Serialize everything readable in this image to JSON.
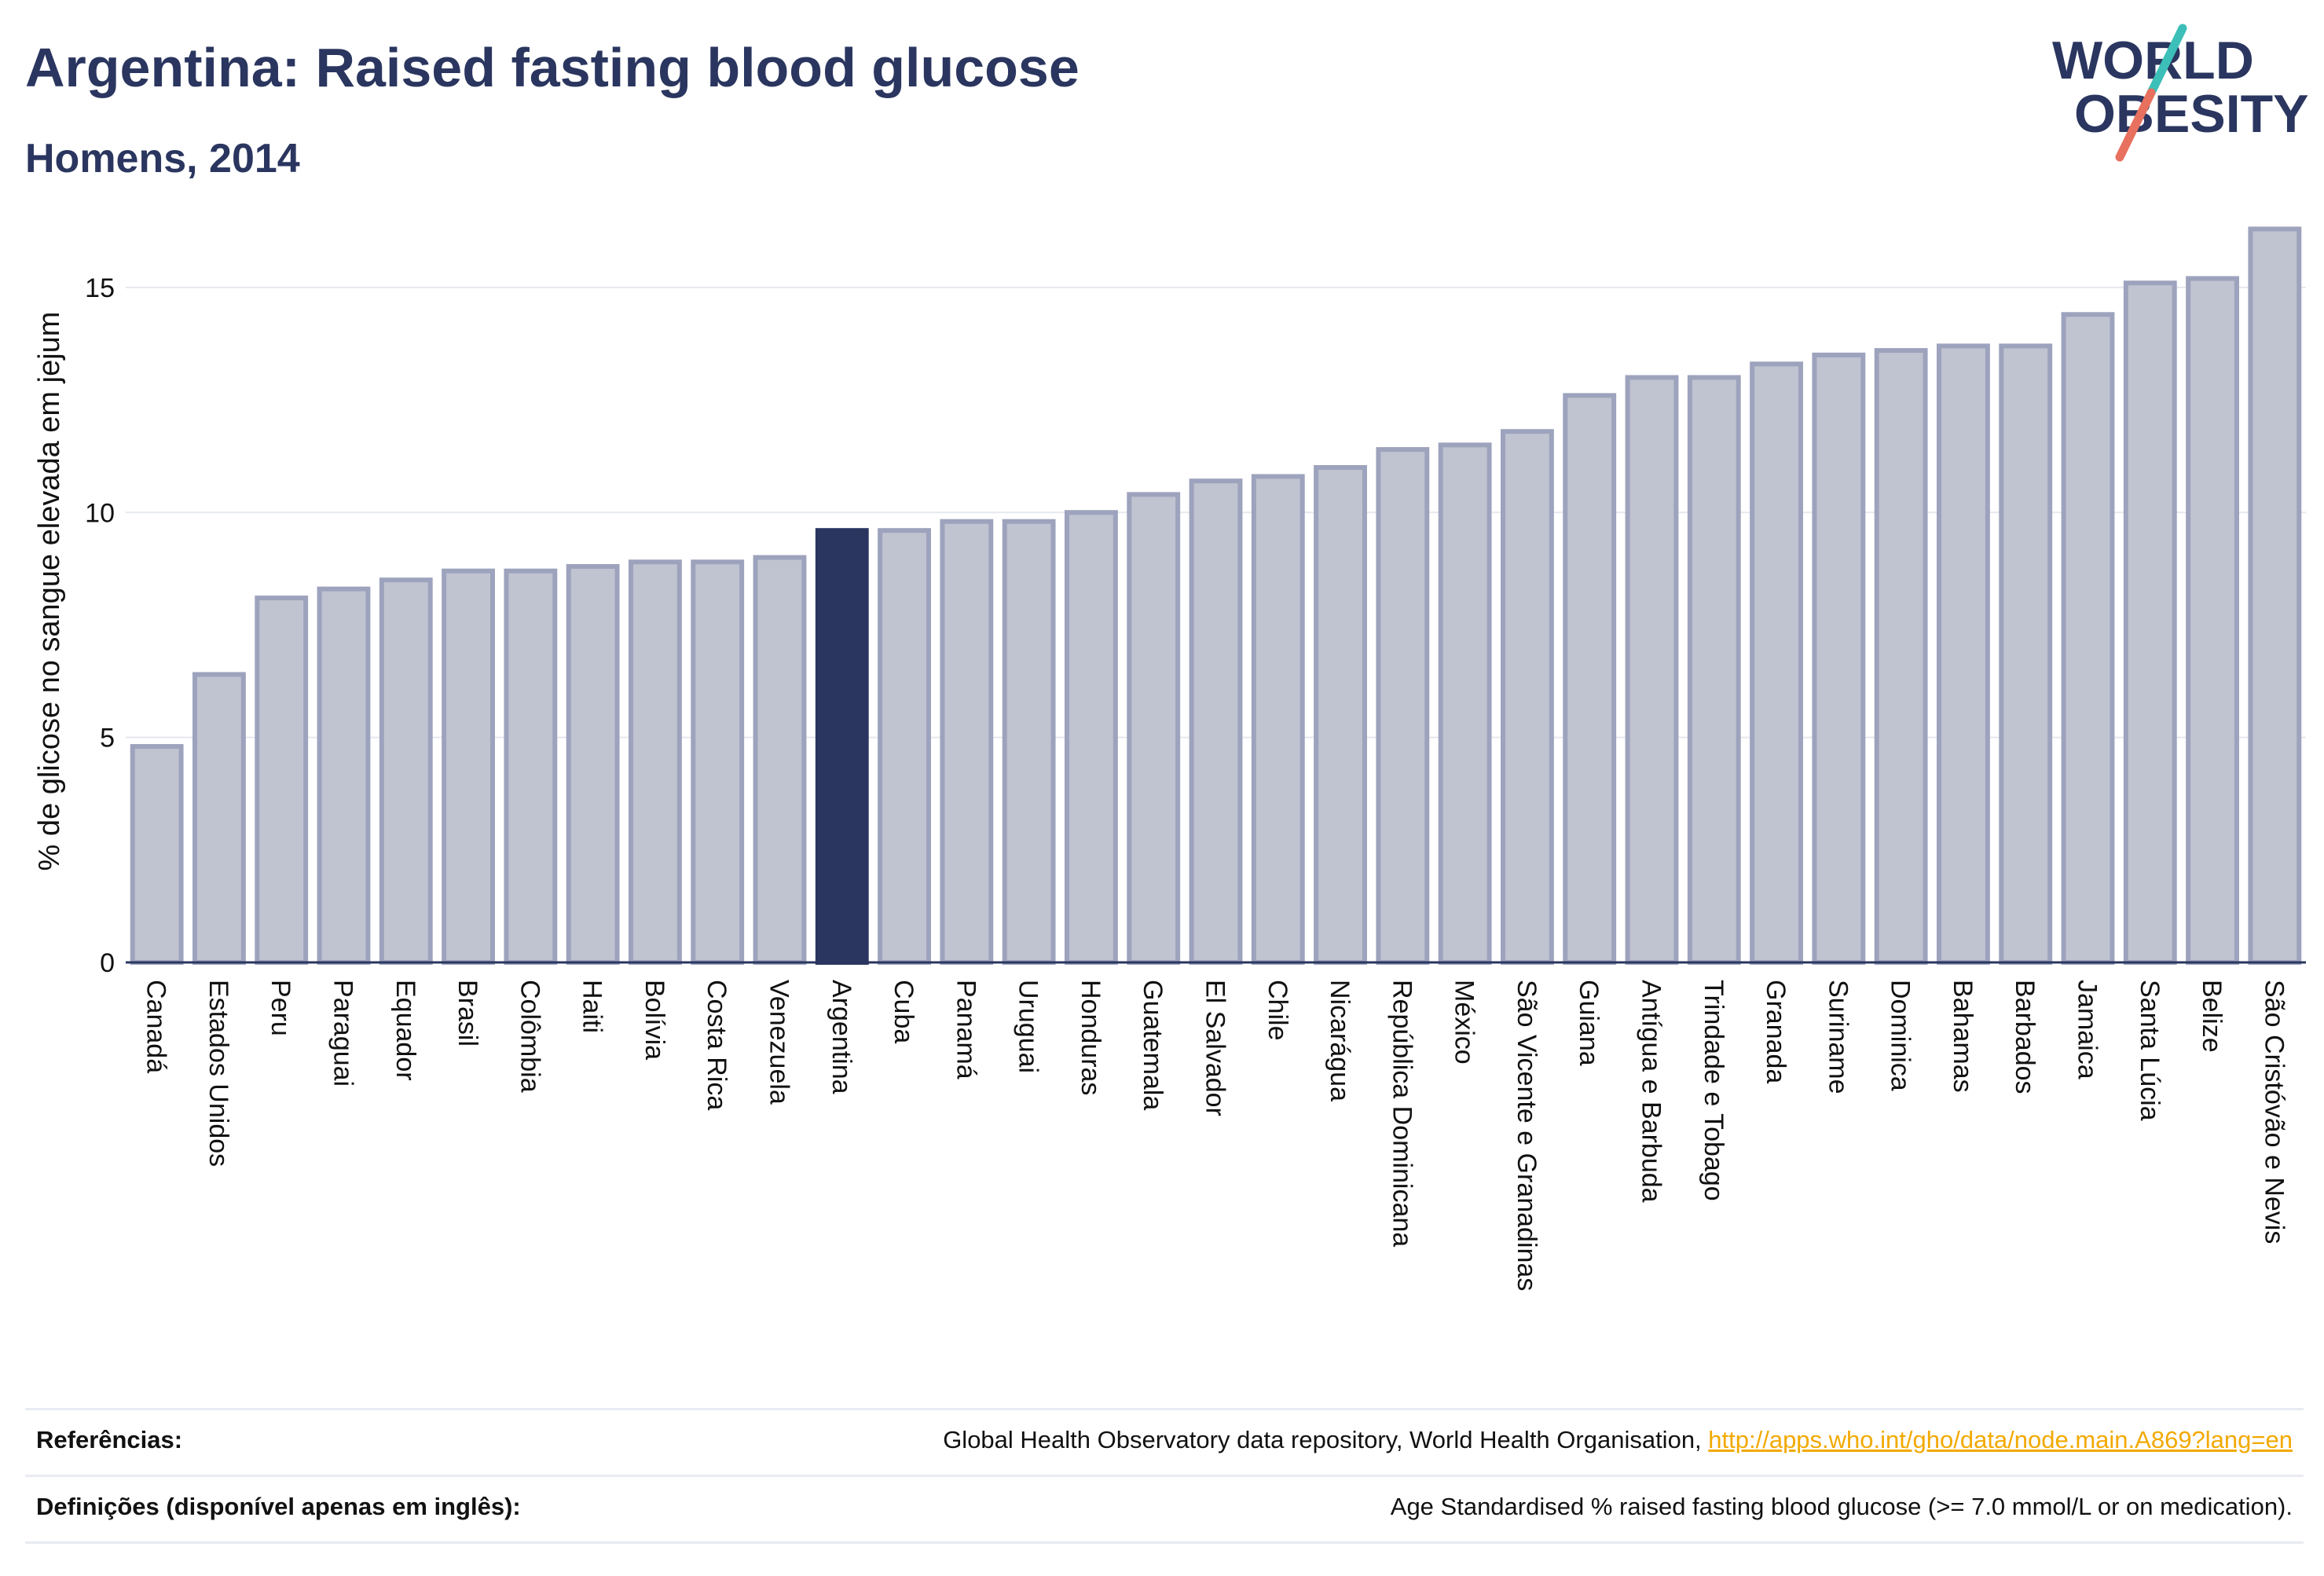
{
  "header": {
    "title": "Argentina: Raised fasting blood glucose",
    "subtitle": "Homens, 2014"
  },
  "logo": {
    "line1": "WORLD",
    "line2": "OBESITY"
  },
  "colors": {
    "highlight": "#2a365f",
    "bar_fill": "#c0c3d0",
    "bar_stroke": "#9da3bd",
    "grid": "#e6e8ee",
    "logo_text": "#2a365f",
    "logo_teal": "#3cbfb8",
    "logo_coral": "#e8705e",
    "link": "#f2a900"
  },
  "chart_data": {
    "type": "bar",
    "ylabel": "% de glicose no sangue elevada em jejum",
    "xlabel": "",
    "ylim": [
      0,
      16.5
    ],
    "yticks": [
      0,
      5,
      10,
      15
    ],
    "grid": true,
    "highlight": "Argentina",
    "categories": [
      "Canadá",
      "Estados Unidos",
      "Peru",
      "Paraguai",
      "Equador",
      "Brasil",
      "Colômbia",
      "Haiti",
      "Bolívia",
      "Costa Rica",
      "Venezuela",
      "Argentina",
      "Cuba",
      "Panamá",
      "Uruguai",
      "Honduras",
      "Guatemala",
      "El Salvador",
      "Chile",
      "Nicarágua",
      "República Dominicana",
      "México",
      "São Vicente e Granadinas",
      "Guiana",
      "Antígua e Barbuda",
      "Trindade e Tobago",
      "Granada",
      "Suriname",
      "Dominica",
      "Bahamas",
      "Barbados",
      "Jamaica",
      "Santa Lúcia",
      "Belize",
      "São Cristóvão e Nevis"
    ],
    "values": [
      4.8,
      6.4,
      8.1,
      8.3,
      8.5,
      8.7,
      8.7,
      8.8,
      8.9,
      8.9,
      9.0,
      9.6,
      9.6,
      9.8,
      9.8,
      10.0,
      10.4,
      10.7,
      10.8,
      11.0,
      11.4,
      11.5,
      11.8,
      12.6,
      13.0,
      13.0,
      13.3,
      13.5,
      13.6,
      13.7,
      13.7,
      14.4,
      15.1,
      15.2,
      16.3
    ]
  },
  "references": [
    {
      "label": "Referências:",
      "text": "Global Health Observatory data repository, World Health Organisation, ",
      "link": "http://apps.who.int/gho/data/node.main.A869?lang=en"
    },
    {
      "label": "Definições (disponível apenas em inglês):",
      "text": "Age Standardised % raised fasting blood glucose (>= 7.0 mmol/L or on medication).",
      "link": ""
    }
  ]
}
